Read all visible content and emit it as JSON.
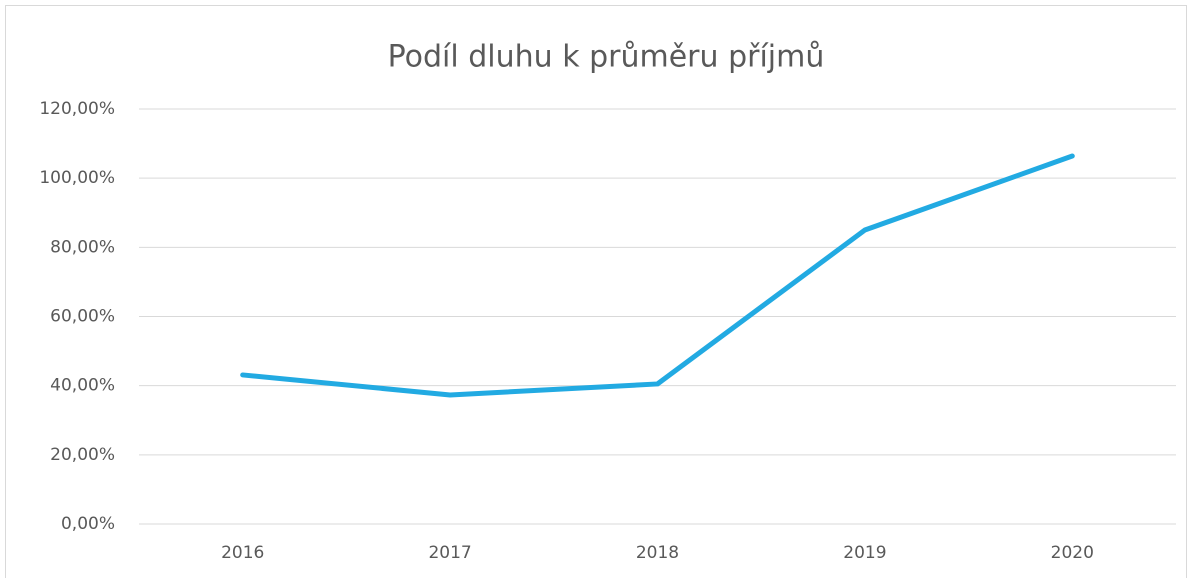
{
  "chart_data": {
    "type": "line",
    "title": "Podíl dluhu k průměru příjmů",
    "categories": [
      "2016",
      "2017",
      "2018",
      "2019",
      "2020"
    ],
    "series": [
      {
        "name": "Podíl dluhu k průměru příjmů",
        "color": "#22aae2",
        "values": [
          43.1,
          37.3,
          40.5,
          85,
          106.4
        ]
      }
    ],
    "ylim": [
      0,
      120
    ],
    "yticks": [
      {
        "value": 0,
        "label": "0,00%"
      },
      {
        "value": 20,
        "label": "20,00%"
      },
      {
        "value": 40,
        "label": "40,00%"
      },
      {
        "value": 60,
        "label": "60,00%"
      },
      {
        "value": 80,
        "label": "80,00%"
      },
      {
        "value": 100,
        "label": "100,00%"
      },
      {
        "value": 120,
        "label": "120,00%"
      }
    ],
    "grid": true
  }
}
